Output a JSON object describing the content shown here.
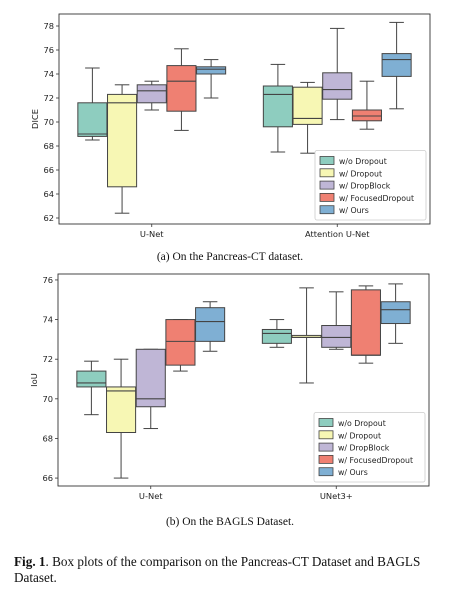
{
  "figure": {
    "label": "Fig. 1",
    "text": ". Box plots of the comparison on the Pancreas-CT Dataset and BAGLS Dataset."
  },
  "chart_data": [
    {
      "type": "box",
      "caption": "(a) On the Pancreas-CT dataset.",
      "ylabel": "DICE",
      "ylim": [
        61.5,
        79
      ],
      "yticks": [
        62,
        64,
        66,
        68,
        70,
        72,
        74,
        76,
        78
      ],
      "categories": [
        "U-Net",
        "Attention U-Net"
      ],
      "legend_position": "lower-right",
      "series": [
        {
          "name": "w/o Dropout",
          "color": "#8ecdbf",
          "boxes": [
            {
              "min": 68.5,
              "q1": 68.8,
              "median": 69.0,
              "q3": 71.6,
              "max": 74.5
            },
            {
              "min": 67.5,
              "q1": 69.6,
              "median": 72.3,
              "q3": 73.0,
              "max": 74.8
            }
          ]
        },
        {
          "name": "w/ Dropout",
          "color": "#f7f7b4",
          "boxes": [
            {
              "min": 62.4,
              "q1": 64.6,
              "median": 71.6,
              "q3": 72.3,
              "max": 73.1
            },
            {
              "min": 67.4,
              "q1": 69.8,
              "median": 70.3,
              "q3": 72.9,
              "max": 73.3
            }
          ]
        },
        {
          "name": "w/ DropBlock",
          "color": "#bfb6d6",
          "boxes": [
            {
              "min": 71.0,
              "q1": 71.6,
              "median": 72.6,
              "q3": 73.1,
              "max": 73.4
            },
            {
              "min": 70.2,
              "q1": 71.9,
              "median": 72.7,
              "q3": 74.1,
              "max": 77.8
            }
          ]
        },
        {
          "name": "w/ FocusedDropout",
          "color": "#ef8072",
          "boxes": [
            {
              "min": 69.3,
              "q1": 70.9,
              "median": 73.4,
              "q3": 74.7,
              "max": 76.1
            },
            {
              "min": 69.4,
              "q1": 70.1,
              "median": 70.5,
              "q3": 71.0,
              "max": 73.4
            }
          ]
        },
        {
          "name": "w/ Ours",
          "color": "#7fafd3",
          "boxes": [
            {
              "min": 72.0,
              "q1": 74.0,
              "median": 74.4,
              "q3": 74.6,
              "max": 75.2
            },
            {
              "min": 71.1,
              "q1": 73.8,
              "median": 75.2,
              "q3": 75.7,
              "max": 78.3
            }
          ]
        }
      ]
    },
    {
      "type": "box",
      "caption": "(b) On the BAGLS Dataset.",
      "ylabel": "IoU",
      "ylim": [
        65.6,
        76.3
      ],
      "yticks": [
        66,
        68,
        70,
        72,
        74,
        76
      ],
      "categories": [
        "U-Net",
        "UNet3+"
      ],
      "legend_position": "lower-right",
      "series": [
        {
          "name": "w/o Dropout",
          "color": "#8ecdbf",
          "boxes": [
            {
              "min": 69.2,
              "q1": 70.6,
              "median": 70.8,
              "q3": 71.4,
              "max": 71.9
            },
            {
              "min": 72.6,
              "q1": 72.8,
              "median": 73.3,
              "q3": 73.5,
              "max": 74.0
            }
          ]
        },
        {
          "name": "w/ Dropout",
          "color": "#f7f7b4",
          "boxes": [
            {
              "min": 66.0,
              "q1": 68.3,
              "median": 70.4,
              "q3": 70.6,
              "max": 72.0
            },
            {
              "min": 70.8,
              "q1": 73.1,
              "median": 73.1,
              "q3": 73.2,
              "max": 75.6
            }
          ]
        },
        {
          "name": "w/ DropBlock",
          "color": "#bfb6d6",
          "boxes": [
            {
              "min": 68.5,
              "q1": 69.6,
              "median": 70.0,
              "q3": 72.5,
              "max": 72.5
            },
            {
              "min": 72.5,
              "q1": 72.6,
              "median": 73.1,
              "q3": 73.7,
              "max": 75.4
            }
          ]
        },
        {
          "name": "w/ FocusedDropout",
          "color": "#ef8072",
          "boxes": [
            {
              "min": 71.4,
              "q1": 71.7,
              "median": 72.9,
              "q3": 74.0,
              "max": 74.0
            },
            {
              "min": 71.8,
              "q1": 72.2,
              "median": 72.2,
              "q3": 75.5,
              "max": 75.7
            }
          ]
        },
        {
          "name": "w/ Ours",
          "color": "#7fafd3",
          "boxes": [
            {
              "min": 72.4,
              "q1": 72.9,
              "median": 73.9,
              "q3": 74.6,
              "max": 74.9
            },
            {
              "min": 72.8,
              "q1": 73.8,
              "median": 74.5,
              "q3": 74.9,
              "max": 75.8
            }
          ]
        }
      ]
    }
  ]
}
